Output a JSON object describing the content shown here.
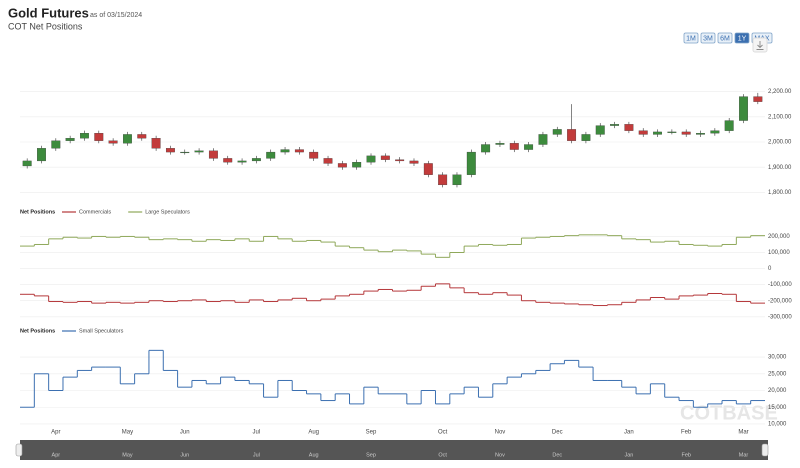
{
  "header": {
    "title": "Gold Futures",
    "as_of": "as of 03/15/2024",
    "subtitle": "COT Net Positions"
  },
  "range_buttons": [
    "1M",
    "3M",
    "6M",
    "1Y",
    "MAX"
  ],
  "active_range": 3,
  "watermark": "COTBASE",
  "chart_data": [
    {
      "type": "candlestick",
      "categories": [
        null,
        null,
        "Apr",
        null,
        null,
        null,
        null,
        "May",
        null,
        null,
        null,
        "Jun",
        null,
        null,
        null,
        null,
        "Jul",
        null,
        null,
        null,
        "Aug",
        null,
        null,
        null,
        "Sep",
        null,
        null,
        null,
        null,
        "Oct",
        null,
        null,
        null,
        "Nov",
        null,
        null,
        null,
        "Dec",
        null,
        null,
        null,
        null,
        "Jan",
        null,
        null,
        null,
        "Feb",
        null,
        null,
        null,
        "Mar",
        null
      ],
      "open": [
        1905,
        1925,
        1975,
        2005,
        2015,
        2035,
        2005,
        1995,
        2030,
        2015,
        1975,
        1960,
        1960,
        1965,
        1935,
        1920,
        1925,
        1935,
        1960,
        1970,
        1960,
        1935,
        1915,
        1900,
        1920,
        1945,
        1930,
        1925,
        1915,
        1870,
        1830,
        1870,
        1960,
        1990,
        1995,
        1970,
        1990,
        2030,
        2050,
        2005,
        2030,
        2065,
        2070,
        2045,
        2030,
        2040,
        2040,
        2030,
        2035,
        2045,
        2085,
        2180
      ],
      "high": [
        1935,
        1985,
        2015,
        2025,
        2045,
        2045,
        2015,
        2040,
        2040,
        2025,
        1985,
        1970,
        1975,
        1975,
        1945,
        1935,
        1945,
        1970,
        1980,
        1980,
        1970,
        1945,
        1925,
        1930,
        1955,
        1955,
        1940,
        1935,
        1925,
        1880,
        1880,
        1970,
        2000,
        2005,
        2005,
        2000,
        2040,
        2060,
        2150,
        2040,
        2075,
        2080,
        2080,
        2055,
        2050,
        2050,
        2050,
        2045,
        2055,
        2095,
        2190,
        2195
      ],
      "low": [
        1895,
        1915,
        1965,
        1995,
        2005,
        1995,
        1985,
        1985,
        2005,
        1965,
        1950,
        1950,
        1950,
        1925,
        1910,
        1910,
        1915,
        1925,
        1950,
        1950,
        1925,
        1905,
        1890,
        1890,
        1910,
        1920,
        1915,
        1905,
        1860,
        1820,
        1820,
        1860,
        1950,
        1980,
        1960,
        1960,
        1980,
        2020,
        1995,
        1995,
        2020,
        2055,
        2035,
        2020,
        2020,
        2030,
        2020,
        2020,
        2025,
        2035,
        2075,
        2150
      ],
      "close": [
        1925,
        1975,
        2005,
        2015,
        2035,
        2005,
        1995,
        2030,
        2015,
        1975,
        1960,
        1960,
        1965,
        1935,
        1920,
        1925,
        1935,
        1960,
        1970,
        1960,
        1935,
        1915,
        1900,
        1920,
        1945,
        1930,
        1925,
        1915,
        1870,
        1830,
        1870,
        1960,
        1990,
        1995,
        1970,
        1990,
        2030,
        2050,
        2005,
        2030,
        2065,
        2070,
        2045,
        2030,
        2040,
        2040,
        2030,
        2035,
        2045,
        2085,
        2180,
        2160
      ],
      "up_color": "#3d8b3d",
      "down_color": "#c23b3b",
      "ylim": [
        1770,
        2226
      ],
      "yticks": [
        {
          "value": 1800,
          "label": "1,800.00"
        },
        {
          "value": 1900,
          "label": "1,900.00"
        },
        {
          "value": 2000,
          "label": "2,000.00"
        },
        {
          "value": 2100,
          "label": "2,100.00"
        },
        {
          "value": 2200,
          "label": "2,200.00"
        }
      ],
      "grid": true
    },
    {
      "type": "step",
      "legend_title": "Net Positions",
      "series": [
        {
          "name": "Commercials",
          "color": "#b5373a",
          "values": [
            -160000,
            -170000,
            -205000,
            -210000,
            -205000,
            -215000,
            -210000,
            -215000,
            -210000,
            -200000,
            -205000,
            -200000,
            -195000,
            -205000,
            -200000,
            -210000,
            -195000,
            -205000,
            -195000,
            -185000,
            -200000,
            -190000,
            -170000,
            -160000,
            -140000,
            -130000,
            -140000,
            -135000,
            -110000,
            -95000,
            -120000,
            -150000,
            -160000,
            -150000,
            -165000,
            -200000,
            -210000,
            -215000,
            -220000,
            -225000,
            -230000,
            -225000,
            -210000,
            -195000,
            -180000,
            -190000,
            -170000,
            -165000,
            -155000,
            -160000,
            -205000,
            -215000
          ]
        },
        {
          "name": "Large Speculators",
          "color": "#8fa85a",
          "values": [
            140000,
            150000,
            185000,
            195000,
            190000,
            200000,
            195000,
            200000,
            195000,
            180000,
            185000,
            180000,
            170000,
            180000,
            175000,
            185000,
            170000,
            200000,
            185000,
            170000,
            175000,
            165000,
            140000,
            130000,
            115000,
            105000,
            115000,
            110000,
            90000,
            70000,
            100000,
            140000,
            150000,
            145000,
            150000,
            190000,
            195000,
            200000,
            205000,
            210000,
            210000,
            205000,
            185000,
            180000,
            165000,
            170000,
            150000,
            145000,
            140000,
            150000,
            195000,
            205000
          ]
        }
      ],
      "ylim": [
        -320000,
        265000
      ],
      "yticks": [
        {
          "value": -300000,
          "label": "-300,000"
        },
        {
          "value": -200000,
          "label": "-200,000"
        },
        {
          "value": -100000,
          "label": "-100,000"
        },
        0,
        {
          "value": 100000,
          "label": "100,000"
        },
        {
          "value": 200000,
          "label": "200,000"
        }
      ],
      "grid": true
    },
    {
      "type": "step",
      "legend_title": "Net Positions",
      "series": [
        {
          "name": "Small Speculators",
          "color": "#3b6fb0",
          "values": [
            15000,
            25000,
            20000,
            24000,
            26000,
            27000,
            27000,
            22000,
            25000,
            32000,
            26000,
            21000,
            23000,
            22000,
            24000,
            23000,
            22000,
            18000,
            23000,
            20000,
            19000,
            17000,
            19000,
            16000,
            21000,
            19000,
            19000,
            16000,
            20000,
            16000,
            19000,
            21000,
            18000,
            22000,
            24000,
            25000,
            26000,
            28000,
            29000,
            27000,
            23000,
            23000,
            21000,
            19000,
            22000,
            18000,
            17000,
            15000,
            16000,
            17000,
            16000,
            17000
          ]
        }
      ],
      "ylim": [
        8200,
        33600
      ],
      "yticks": [
        {
          "value": 10000,
          "label": "10,000"
        },
        {
          "value": 15000,
          "label": "15,000"
        },
        {
          "value": 20000,
          "label": "20,000"
        },
        {
          "value": 25000,
          "label": "25,000"
        },
        {
          "value": 30000,
          "label": "30,000"
        }
      ],
      "grid": true
    }
  ]
}
